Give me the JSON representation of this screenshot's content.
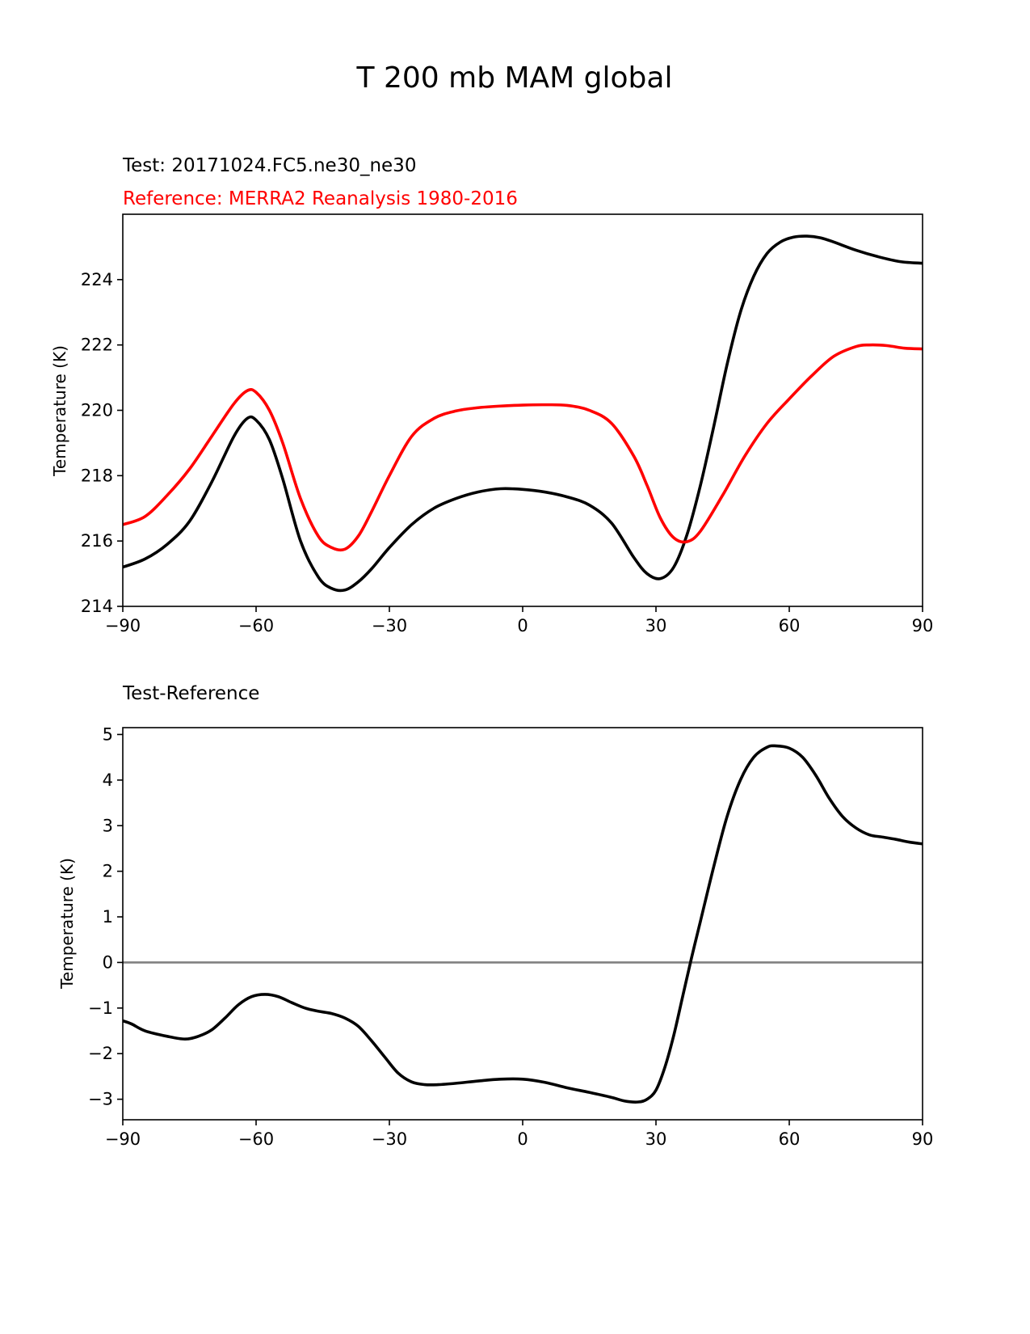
{
  "figure_title": "T 200 mb MAM global",
  "colors": {
    "test": "#000000",
    "reference": "#ff0000",
    "zero_line": "#808080",
    "axis": "#000000"
  },
  "chart_data": [
    {
      "type": "line",
      "test_label": "Test: 20171024.FC5.ne30_ne30",
      "reference_label": "Reference: MERRA2 Reanalysis 1980-2016",
      "xlabel": "",
      "ylabel": "Temperature (K)",
      "xlim": [
        -90,
        90
      ],
      "ylim": [
        214,
        226
      ],
      "xticks": [
        -90,
        -60,
        -30,
        0,
        30,
        60,
        90
      ],
      "xtick_labels": [
        "−90",
        "−60",
        "−30",
        "0",
        "30",
        "60",
        "90"
      ],
      "yticks": [
        214,
        216,
        218,
        220,
        222,
        224
      ],
      "ytick_labels": [
        "214",
        "216",
        "218",
        "220",
        "222",
        "224"
      ],
      "series": [
        {
          "name": "Test",
          "color": "#000000",
          "x": [
            -90,
            -85,
            -80,
            -75,
            -70,
            -65,
            -62,
            -60,
            -57,
            -54,
            -50,
            -46,
            -43,
            -40,
            -37,
            -34,
            -30,
            -25,
            -20,
            -15,
            -10,
            -5,
            0,
            5,
            10,
            15,
            20,
            25,
            28,
            31,
            34,
            37,
            40,
            43,
            46,
            49,
            52,
            55,
            58,
            61,
            64,
            67,
            70,
            75,
            80,
            85,
            90
          ],
          "y": [
            215.2,
            215.45,
            215.9,
            216.6,
            217.8,
            219.2,
            219.75,
            219.7,
            219.1,
            217.9,
            216.0,
            214.9,
            214.55,
            214.5,
            214.75,
            215.15,
            215.8,
            216.5,
            217.0,
            217.3,
            217.5,
            217.6,
            217.58,
            217.5,
            217.35,
            217.1,
            216.55,
            215.5,
            215.0,
            214.85,
            215.2,
            216.2,
            217.7,
            219.5,
            221.4,
            223.0,
            224.1,
            224.8,
            225.15,
            225.3,
            225.33,
            225.28,
            225.15,
            224.9,
            224.7,
            224.55,
            224.5
          ]
        },
        {
          "name": "Reference",
          "color": "#ff0000",
          "x": [
            -90,
            -85,
            -80,
            -75,
            -70,
            -65,
            -62,
            -60,
            -57,
            -54,
            -50,
            -46,
            -43,
            -40,
            -37,
            -34,
            -30,
            -25,
            -20,
            -15,
            -10,
            -5,
            0,
            5,
            10,
            15,
            20,
            25,
            28,
            31,
            34,
            37,
            40,
            45,
            50,
            55,
            60,
            65,
            70,
            75,
            78,
            82,
            86,
            90
          ],
          "y": [
            216.5,
            216.75,
            217.4,
            218.2,
            219.2,
            220.2,
            220.6,
            220.55,
            220.0,
            219.0,
            217.3,
            216.15,
            215.8,
            215.75,
            216.15,
            216.9,
            218.0,
            219.2,
            219.75,
            219.98,
            220.08,
            220.13,
            220.16,
            220.17,
            220.15,
            220.0,
            219.6,
            218.6,
            217.7,
            216.7,
            216.1,
            215.98,
            216.3,
            217.4,
            218.6,
            219.6,
            220.35,
            221.05,
            221.65,
            221.95,
            222.0,
            221.98,
            221.9,
            221.88
          ]
        }
      ]
    },
    {
      "type": "line",
      "title": "Test-Reference",
      "xlabel": "",
      "ylabel": "Temperature (K)",
      "xlim": [
        -90,
        90
      ],
      "ylim": [
        -3.45,
        5.15
      ],
      "xticks": [
        -90,
        -60,
        -30,
        0,
        30,
        60,
        90
      ],
      "xtick_labels": [
        "−90",
        "−60",
        "−30",
        "0",
        "30",
        "60",
        "90"
      ],
      "yticks": [
        -3,
        -2,
        -1,
        0,
        1,
        2,
        3,
        4,
        5
      ],
      "ytick_labels": [
        "−3",
        "−2",
        "−1",
        "0",
        "1",
        "2",
        "3",
        "4",
        "5"
      ],
      "zero_line": 0,
      "series": [
        {
          "name": "Test-Reference",
          "color": "#000000",
          "x": [
            -90,
            -88,
            -85,
            -80,
            -76,
            -73,
            -70,
            -67,
            -64,
            -61,
            -58,
            -55,
            -52,
            -49,
            -46,
            -43,
            -40,
            -37,
            -34,
            -31,
            -28,
            -25,
            -22,
            -19,
            -15,
            -10,
            -5,
            0,
            5,
            10,
            15,
            20,
            23,
            26,
            28,
            30,
            32,
            34,
            36,
            38,
            40,
            43,
            46,
            49,
            52,
            55,
            57,
            60,
            63,
            66,
            69,
            72,
            75,
            78,
            81,
            84,
            87,
            90
          ],
          "y": [
            -1.28,
            -1.35,
            -1.5,
            -1.62,
            -1.68,
            -1.62,
            -1.48,
            -1.22,
            -0.93,
            -0.75,
            -0.7,
            -0.75,
            -0.88,
            -1.0,
            -1.07,
            -1.12,
            -1.22,
            -1.4,
            -1.72,
            -2.08,
            -2.43,
            -2.62,
            -2.68,
            -2.68,
            -2.65,
            -2.6,
            -2.56,
            -2.56,
            -2.63,
            -2.75,
            -2.85,
            -2.96,
            -3.04,
            -3.06,
            -3.0,
            -2.8,
            -2.3,
            -1.6,
            -0.75,
            0.1,
            0.9,
            2.1,
            3.2,
            4.0,
            4.5,
            4.72,
            4.75,
            4.7,
            4.5,
            4.1,
            3.6,
            3.2,
            2.95,
            2.8,
            2.75,
            2.7,
            2.64,
            2.6
          ]
        }
      ]
    }
  ]
}
